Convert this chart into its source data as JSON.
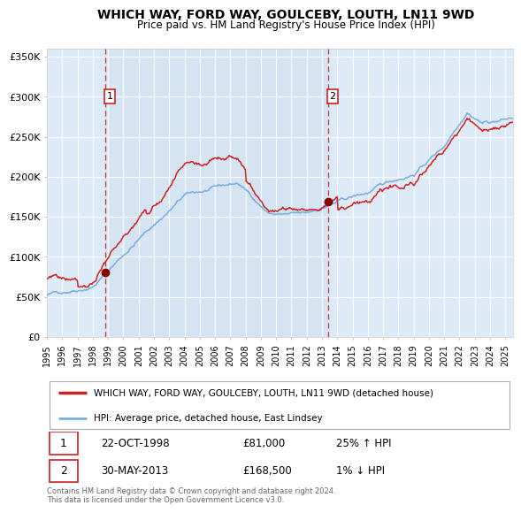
{
  "title": "WHICH WAY, FORD WAY, GOULCEBY, LOUTH, LN11 9WD",
  "subtitle": "Price paid vs. HM Land Registry's House Price Index (HPI)",
  "title_fontsize": 10,
  "subtitle_fontsize": 8.5,
  "background_color": "#ffffff",
  "plot_bg_color": "#ddeaf7",
  "plot_bg_shade": "#ccdff0",
  "grid_color": "#ffffff",
  "ylim": [
    0,
    360000
  ],
  "yticks": [
    0,
    50000,
    100000,
    150000,
    200000,
    250000,
    300000,
    350000
  ],
  "ytick_labels": [
    "£0",
    "£50K",
    "£100K",
    "£150K",
    "£200K",
    "£250K",
    "£300K",
    "£350K"
  ],
  "year_start": 1995.0,
  "year_end": 2025.5,
  "xtick_years": [
    1995,
    1996,
    1997,
    1998,
    1999,
    2000,
    2001,
    2002,
    2003,
    2004,
    2005,
    2006,
    2007,
    2008,
    2009,
    2010,
    2011,
    2012,
    2013,
    2014,
    2015,
    2016,
    2017,
    2018,
    2019,
    2020,
    2021,
    2022,
    2023,
    2024,
    2025
  ],
  "sale1_x": 1998.8,
  "sale1_y": 81000,
  "sale2_x": 2013.4,
  "sale2_y": 168500,
  "vline1_x": 1998.8,
  "vline2_x": 2013.4,
  "red_line_color": "#cc2222",
  "blue_line_color": "#7aabdb",
  "dot_color": "#880000",
  "vline1_color": "#cc3333",
  "vline2_color": "#cc3333",
  "legend_entry1": "WHICH WAY, FORD WAY, GOULCEBY, LOUTH, LN11 9WD (detached house)",
  "legend_entry2": "HPI: Average price, detached house, East Lindsey",
  "table_row1_num": "1",
  "table_row1_date": "22-OCT-1998",
  "table_row1_price": "£81,000",
  "table_row1_hpi": "25% ↑ HPI",
  "table_row2_num": "2",
  "table_row2_date": "30-MAY-2013",
  "table_row2_price": "£168,500",
  "table_row2_hpi": "1% ↓ HPI",
  "footer": "Contains HM Land Registry data © Crown copyright and database right 2024.\nThis data is licensed under the Open Government Licence v3.0.",
  "shade_start": 1998.8,
  "shade_end": 2013.4
}
